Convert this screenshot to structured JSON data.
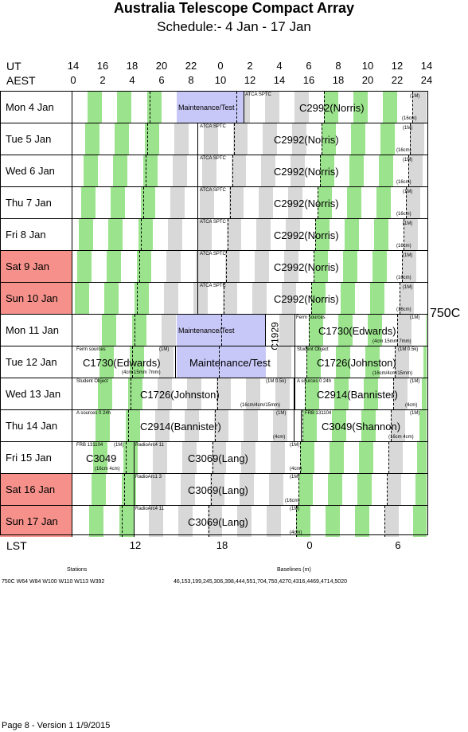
{
  "title": "Australia Telescope Compact Array",
  "subtitle": "Schedule:- 4  Jan - 17 Jan",
  "axis": {
    "ut_label": "UT",
    "aest_label": "AEST",
    "lst_label": "LST",
    "ut_ticks": [
      "14",
      "16",
      "18",
      "20",
      "22",
      "0",
      "2",
      "4",
      "6",
      "8",
      "10",
      "12",
      "14"
    ],
    "aest_ticks": [
      "0",
      "2",
      "4",
      "6",
      "8",
      "10",
      "12",
      "14",
      "16",
      "18",
      "20",
      "22",
      "24"
    ],
    "lst_ticks": [
      "12",
      "18",
      "0",
      "6"
    ]
  },
  "config": "750C",
  "days": [
    {
      "label": "Mon    4  Jan",
      "weekend": false,
      "main": "C2992(Norris)",
      "maint": "Maintenance/Test",
      "small": [
        "ATCA SPTC",
        "(1M)",
        "(16cm)"
      ]
    },
    {
      "label": "Tue    5  Jan",
      "weekend": false,
      "main": "C2992(Norris)",
      "small": [
        "ATCA SPTC",
        "(1M)",
        "(16cm)"
      ]
    },
    {
      "label": "Wed   6  Jan",
      "weekend": false,
      "main": "C2992(Norris)",
      "small": [
        "ATCA SPTC",
        "(1M)",
        "(16cm)"
      ]
    },
    {
      "label": "Thu    7  Jan",
      "weekend": false,
      "main": "C2992(Norris)",
      "small": [
        "ATCA SPTC",
        "(1M)",
        "(16cm)"
      ]
    },
    {
      "label": "Fri    8  Jan",
      "weekend": false,
      "main": "C2992(Norris)",
      "small": [
        "ATCA SPTC",
        "(1M)",
        "(16cm)"
      ]
    },
    {
      "label": "Sat    9  Jan",
      "weekend": true,
      "main": "C2992(Norris)",
      "small": [
        "ATCA SPTC",
        "(1M)",
        "(16cm)"
      ]
    },
    {
      "label": "Sun   10  Jan",
      "weekend": true,
      "main": "C2992(Norris)",
      "small": [
        "ATCA SPTC",
        "(1M)",
        "(16cm)"
      ]
    },
    {
      "label": "Mon   11  Jan",
      "weekend": false,
      "main": "C1730(Edwards)",
      "maint": "Maintenance/Test",
      "vert": "C1929",
      "small": [
        "Ferm  sources",
        "(1M)",
        "(4cm 15mm 7mm)"
      ]
    },
    {
      "label": "Tue    12  Jan",
      "weekend": false,
      "main": "C1730(Edwards)",
      "main2": "C1726(Johnston)",
      "maint": "Maintenance/Test",
      "small": [
        "Ferm  sources",
        "(1M)",
        "(4cm 15mm 7mm)",
        "Student Object",
        "(1M 0.5k)",
        "(16cm/4cm/15mm)"
      ]
    },
    {
      "label": "Wed   13  Jan",
      "weekend": false,
      "main": "C1726(Johnston)",
      "main2": "C2914(Bannister)",
      "small": [
        "Student Object",
        "(1M 0.5k)",
        "(16cm/4cm/15mm)",
        "A  sources 0 24h",
        "(1M)",
        "(4cm)"
      ]
    },
    {
      "label": "Thu    14  Jan",
      "weekend": false,
      "main": "C2914(Bannister)",
      "main2": "C3049(Shannon)",
      "small": [
        "A  sources 0 24h",
        "(1M)",
        "(4cm)",
        "FRB  131104",
        "(1M)",
        "(16cm 4cm)"
      ]
    },
    {
      "label": "Fri    15  Jan",
      "weekend": false,
      "main": "C3049",
      "main2": "C3069(Lang)",
      "small": [
        "FRB  131104",
        "(1M)",
        "(16cm 4cm)",
        "RadioArc4 11",
        "(1M)",
        "(4cm)"
      ]
    },
    {
      "label": "Sat    16  Jan",
      "weekend": true,
      "main": "C3069(Lang)",
      "small": [
        "RadioArc1 3",
        "(1M)",
        "(16cm)"
      ]
    },
    {
      "label": "Sun   17  Jan",
      "weekend": true,
      "main": "C3069(Lang)",
      "small": [
        "RadioArc4 11",
        "(1M)",
        "(4cm)"
      ]
    }
  ],
  "footer": {
    "stations_label": "Stations",
    "stations": "750C   W64 W84 W100 W110 W113 W392",
    "baselines_label": "Baselines (m)",
    "baselines": "46,153,199,245,306,398,444,551,704,750,4270,4316,4469,4714,5020",
    "page": "Page 8 - Version 1  1/9/2015"
  },
  "colors": {
    "green": "#9be38c",
    "grey": "#d8d8d8",
    "maint": "#c8c8f8",
    "weekend": "#f5918a"
  }
}
